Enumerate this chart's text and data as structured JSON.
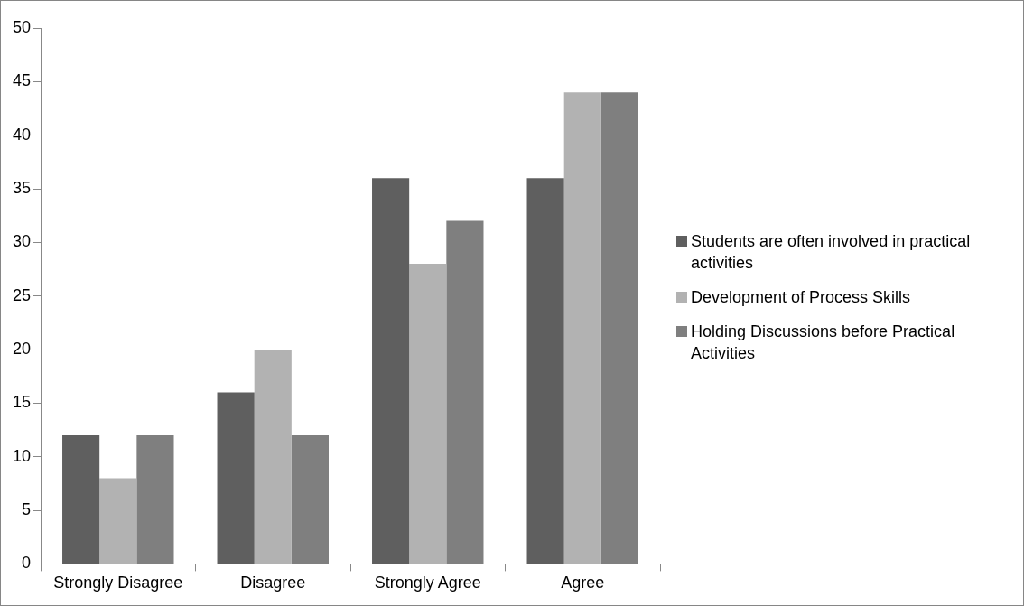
{
  "chart_data": {
    "type": "bar",
    "categories": [
      "Strongly Disagree",
      "Disagree",
      "Strongly Agree",
      "Agree"
    ],
    "series": [
      {
        "name": "Students are often involved in practical activities",
        "color": "#5f5f5f",
        "values": [
          12,
          16,
          36,
          36
        ]
      },
      {
        "name": "Development of Process Skills",
        "color": "#b2b2b2",
        "values": [
          8,
          20,
          28,
          44
        ]
      },
      {
        "name": "Holding Discussions before Practical Activities",
        "color": "#7f7f7f",
        "values": [
          12,
          12,
          32,
          44
        ]
      }
    ],
    "ylim": [
      0,
      50
    ],
    "yticks": [
      0,
      5,
      10,
      15,
      20,
      25,
      30,
      35,
      40,
      45,
      50
    ],
    "grid": false,
    "legend": "right"
  }
}
